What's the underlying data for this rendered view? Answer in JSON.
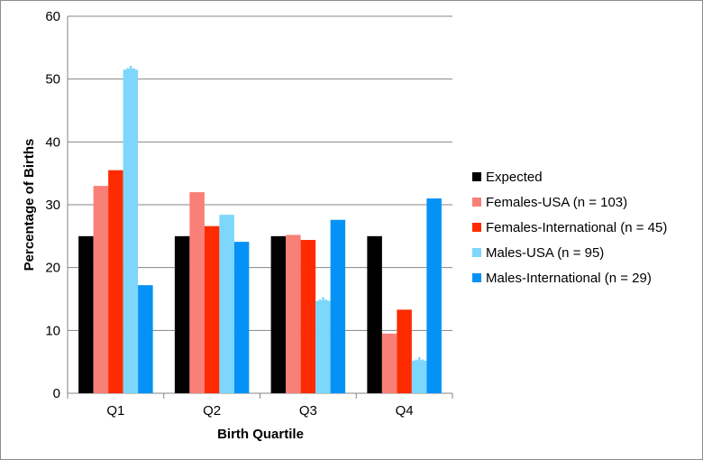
{
  "chart_data": {
    "type": "bar",
    "title": "",
    "xlabel": "Birth Quartile",
    "ylabel": "Percentage of Births",
    "ylim": [
      0,
      60
    ],
    "yticks": [
      "0",
      "10",
      "20",
      "30",
      "40",
      "50",
      "60"
    ],
    "grid": true,
    "legend_position": "right",
    "categories": [
      "Q1",
      "Q2",
      "Q3",
      "Q4"
    ],
    "series": [
      {
        "name": "Expected",
        "color": "#000000",
        "values": [
          25,
          25,
          25,
          25
        ]
      },
      {
        "name": "Females-USA (n = 103)",
        "color": "#f98077",
        "values": [
          33,
          32,
          25.2,
          9.5
        ]
      },
      {
        "name": "Females-International (n = 45)",
        "color": "#fe2b00",
        "values": [
          35.5,
          26.6,
          24.4,
          13.3
        ]
      },
      {
        "name": "Males-USA (n = 95)",
        "color": "#7dd6fb",
        "values": [
          51.5,
          28.4,
          14.7,
          5.2
        ]
      },
      {
        "name": "Males-International (n = 29)",
        "color": "#0592f7",
        "values": [
          17.2,
          24.1,
          27.6,
          31
        ]
      }
    ],
    "annotations": [
      {
        "text": "*",
        "series": 3,
        "category": 0,
        "color": "#7dd6fb"
      },
      {
        "text": "*",
        "series": 3,
        "category": 2,
        "color": "#7dd6fb"
      },
      {
        "text": "*",
        "series": 3,
        "category": 3,
        "color": "#7dd6fb"
      }
    ]
  }
}
